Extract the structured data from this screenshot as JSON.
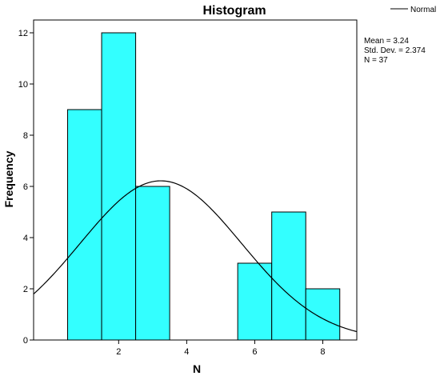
{
  "chart_data": {
    "type": "bar",
    "subtype": "histogram",
    "title": "Histogram",
    "xlabel": "N",
    "ylabel": "Frequency",
    "xlim": [
      -0.5,
      9.0
    ],
    "ylim": [
      0,
      12.5
    ],
    "x_ticks": [
      2,
      4,
      6,
      8
    ],
    "y_ticks": [
      0,
      2,
      4,
      6,
      8,
      10,
      12
    ],
    "bin_width": 1,
    "bins": [
      {
        "start": 0.5,
        "end": 1.5,
        "value": 9
      },
      {
        "start": 1.5,
        "end": 2.5,
        "value": 12
      },
      {
        "start": 2.5,
        "end": 3.5,
        "value": 6
      },
      {
        "start": 3.5,
        "end": 4.5,
        "value": 0
      },
      {
        "start": 4.5,
        "end": 5.5,
        "value": 0
      },
      {
        "start": 5.5,
        "end": 6.5,
        "value": 3
      },
      {
        "start": 6.5,
        "end": 7.5,
        "value": 5
      },
      {
        "start": 7.5,
        "end": 8.5,
        "value": 2
      }
    ],
    "normal_curve": {
      "mean": 3.24,
      "std_dev": 2.374,
      "n": 37
    },
    "stats_lines": [
      "Mean = 3.24",
      "Std. Dev. = 2.374",
      "N = 37"
    ],
    "legend": {
      "entries": [
        "Normal"
      ],
      "position": "top-right"
    },
    "grid": false,
    "colors": {
      "bar_fill": "#33FFFF",
      "bar_stroke": "#000000",
      "curve": "#000000"
    }
  }
}
